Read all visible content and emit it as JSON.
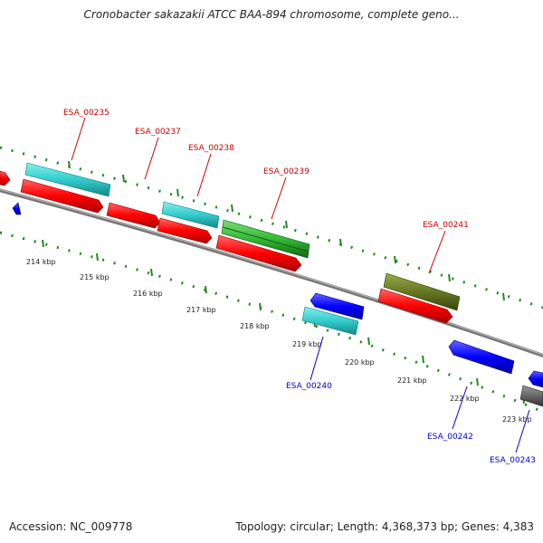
{
  "header": {
    "title": "Cronobacter sakazakii ATCC BAA-894 chromosome, complete geno..."
  },
  "footer": {
    "accession": "Accession: NC_009778",
    "topology": "Topology: circular; Length: 4,368,373 bp; Genes: 4,383"
  },
  "scale": {
    "ticks": [
      "214 kbp",
      "215 kbp",
      "216 kbp",
      "217 kbp",
      "218 kbp",
      "219 kbp",
      "220 kbp",
      "221 kbp",
      "222 kbp",
      "223 kbp"
    ]
  },
  "genes": {
    "forward_labels": [
      "ESA_00235",
      "ESA_00237",
      "ESA_00238",
      "ESA_00239",
      "ESA_00241"
    ],
    "reverse_labels": [
      "ESA_00240",
      "ESA_00242",
      "ESA_00243"
    ]
  },
  "colors": {
    "forward_label": "#cc0000",
    "reverse_label": "#0000cc",
    "cds_red": "#ff0000",
    "cds_cyan": "#33cccc",
    "cds_green": "#33bb33",
    "cds_olive": "#667722",
    "cds_blue": "#0000ff",
    "cds_gray": "#666666",
    "backbone": "#888888",
    "ticks": "#228822"
  }
}
